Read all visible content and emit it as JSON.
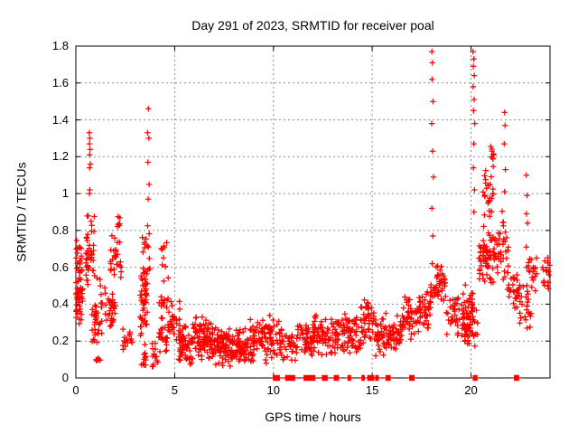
{
  "chart_data": {
    "type": "scatter",
    "title": "Day 291 of 2023, SRMTID for receiver poal",
    "xlabel": "GPS time / hours",
    "ylabel": "SRMTID / TECUs",
    "xlim": [
      0,
      24
    ],
    "ylim": [
      0,
      1.8
    ],
    "grid": true,
    "legend": "none",
    "marker": "plus",
    "marker_color": "#ff0000",
    "grid_color": "#8a8a8a",
    "axis_color": "#000000",
    "x_tick_values": [
      0,
      5,
      10,
      15,
      20
    ],
    "x_tick_labels": [
      "0",
      "5",
      "10",
      "15",
      "20"
    ],
    "y_tick_values": [
      0,
      0.2,
      0.4,
      0.6,
      0.8,
      1,
      1.2,
      1.4,
      1.6,
      1.8
    ],
    "y_tick_labels": [
      "0",
      "0.2",
      "0.4",
      "0.6",
      "0.8",
      "1",
      "1.2",
      "1.4",
      "1.6",
      "1.8"
    ],
    "cluster_format": [
      "x_min",
      "x_max",
      "y_min",
      "y_max",
      "count"
    ],
    "clusters": [
      [
        0.0,
        0.35,
        0.28,
        0.62,
        50
      ],
      [
        0.02,
        0.3,
        0.6,
        0.75,
        14
      ],
      [
        0.5,
        0.95,
        0.45,
        0.92,
        40
      ],
      [
        0.8,
        1.35,
        0.15,
        0.55,
        38
      ],
      [
        1.0,
        1.25,
        0.05,
        0.14,
        6
      ],
      [
        1.45,
        2.0,
        0.25,
        0.52,
        32
      ],
      [
        1.75,
        2.3,
        0.5,
        0.8,
        26
      ],
      [
        2.05,
        2.3,
        0.8,
        0.9,
        6
      ],
      [
        2.3,
        2.85,
        0.08,
        0.32,
        16
      ],
      [
        3.25,
        3.6,
        0.15,
        0.78,
        45
      ],
      [
        3.3,
        3.55,
        0.04,
        0.15,
        10
      ],
      [
        3.35,
        3.8,
        0.3,
        0.97,
        22
      ],
      [
        3.8,
        4.15,
        0.05,
        0.22,
        14
      ],
      [
        4.2,
        4.7,
        0.1,
        0.55,
        38
      ],
      [
        4.3,
        4.6,
        0.55,
        0.78,
        8
      ],
      [
        4.7,
        5.3,
        0.16,
        0.45,
        28
      ],
      [
        5.2,
        5.9,
        0.05,
        0.3,
        55
      ],
      [
        5.9,
        6.6,
        0.07,
        0.35,
        60
      ],
      [
        6.6,
        7.3,
        0.05,
        0.33,
        60
      ],
      [
        7.3,
        8.0,
        0.04,
        0.3,
        65
      ],
      [
        8.0,
        8.8,
        0.06,
        0.28,
        60
      ],
      [
        8.8,
        9.6,
        0.08,
        0.33,
        55
      ],
      [
        9.6,
        10.3,
        0.05,
        0.35,
        40
      ],
      [
        10.3,
        11.2,
        0.08,
        0.28,
        42
      ],
      [
        11.2,
        12.0,
        0.1,
        0.3,
        48
      ],
      [
        12.0,
        12.8,
        0.1,
        0.35,
        50
      ],
      [
        12.8,
        13.6,
        0.12,
        0.33,
        48
      ],
      [
        13.6,
        14.4,
        0.12,
        0.36,
        48
      ],
      [
        14.4,
        15.1,
        0.15,
        0.43,
        48
      ],
      [
        15.1,
        15.9,
        0.1,
        0.37,
        45
      ],
      [
        15.9,
        16.5,
        0.12,
        0.35,
        40
      ],
      [
        16.5,
        17.3,
        0.2,
        0.46,
        45
      ],
      [
        17.3,
        17.95,
        0.25,
        0.5,
        40
      ],
      [
        17.9,
        18.2,
        0.35,
        0.55,
        12
      ],
      [
        18.2,
        18.75,
        0.4,
        0.62,
        35
      ],
      [
        18.75,
        19.5,
        0.22,
        0.46,
        32
      ],
      [
        19.5,
        20.35,
        0.15,
        0.45,
        65
      ],
      [
        19.6,
        20.1,
        0.3,
        0.55,
        14
      ],
      [
        20.4,
        21.05,
        0.48,
        0.85,
        55
      ],
      [
        20.6,
        21.15,
        0.85,
        1.15,
        25
      ],
      [
        20.95,
        21.2,
        1.15,
        1.32,
        8
      ],
      [
        21.1,
        21.65,
        0.5,
        0.95,
        30
      ],
      [
        21.6,
        21.9,
        0.45,
        0.95,
        18
      ],
      [
        21.9,
        22.45,
        0.3,
        0.62,
        26
      ],
      [
        22.45,
        23.1,
        0.25,
        0.55,
        24
      ],
      [
        22.9,
        23.35,
        0.45,
        0.75,
        18
      ],
      [
        23.35,
        23.95,
        0.35,
        0.68,
        12
      ],
      [
        23.8,
        24.0,
        0.45,
        0.66,
        6
      ]
    ],
    "spire_points": [
      [
        0.68,
        1.33
      ],
      [
        0.71,
        1.3
      ],
      [
        0.69,
        1.27
      ],
      [
        0.72,
        1.24
      ],
      [
        0.7,
        1.21
      ],
      [
        0.73,
        1.16
      ],
      [
        0.7,
        1.14
      ],
      [
        0.71,
        1.02
      ],
      [
        0.69,
        1.0
      ],
      [
        3.67,
        1.46
      ],
      [
        3.63,
        1.33
      ],
      [
        3.7,
        1.3
      ],
      [
        3.65,
        1.17
      ],
      [
        3.71,
        1.05
      ],
      [
        3.66,
        0.97
      ],
      [
        18.02,
        1.77
      ],
      [
        18.05,
        1.71
      ],
      [
        18.03,
        1.62
      ],
      [
        18.08,
        1.5
      ],
      [
        18.01,
        1.38
      ],
      [
        18.06,
        1.23
      ],
      [
        18.1,
        1.09
      ],
      [
        18.02,
        0.92
      ],
      [
        18.07,
        0.77
      ],
      [
        18.04,
        0.62
      ],
      [
        20.1,
        1.77
      ],
      [
        20.14,
        1.73
      ],
      [
        20.12,
        1.69
      ],
      [
        20.17,
        1.64
      ],
      [
        20.11,
        1.58
      ],
      [
        20.16,
        1.51
      ],
      [
        20.13,
        1.45
      ],
      [
        20.19,
        1.38
      ],
      [
        20.14,
        1.27
      ],
      [
        20.12,
        1.14
      ],
      [
        20.18,
        1.02
      ],
      [
        20.15,
        0.9
      ],
      [
        21.7,
        1.44
      ],
      [
        21.73,
        1.37
      ],
      [
        21.68,
        1.27
      ],
      [
        21.74,
        1.13
      ],
      [
        21.7,
        1.01
      ],
      [
        22.8,
        1.1
      ],
      [
        22.84,
        0.99
      ],
      [
        22.81,
        0.89
      ],
      [
        22.86,
        0.84
      ],
      [
        22.8,
        0.71
      ],
      [
        22.83,
        0.6
      ],
      [
        22.85,
        0.47
      ],
      [
        22.82,
        0.37
      ],
      [
        22.84,
        0.27
      ]
    ],
    "zero_segments": [
      [
        10.0,
        10.32
      ],
      [
        10.62,
        11.08
      ],
      [
        11.55,
        12.1
      ],
      [
        12.48,
        12.72
      ],
      [
        13.08,
        13.3
      ],
      [
        13.78,
        13.92
      ],
      [
        14.48,
        14.62
      ],
      [
        14.78,
        15.08
      ],
      [
        15.18,
        15.32
      ],
      [
        15.7,
        15.92
      ],
      [
        16.9,
        17.12
      ],
      [
        20.12,
        20.3
      ],
      [
        22.2,
        22.42
      ]
    ]
  }
}
